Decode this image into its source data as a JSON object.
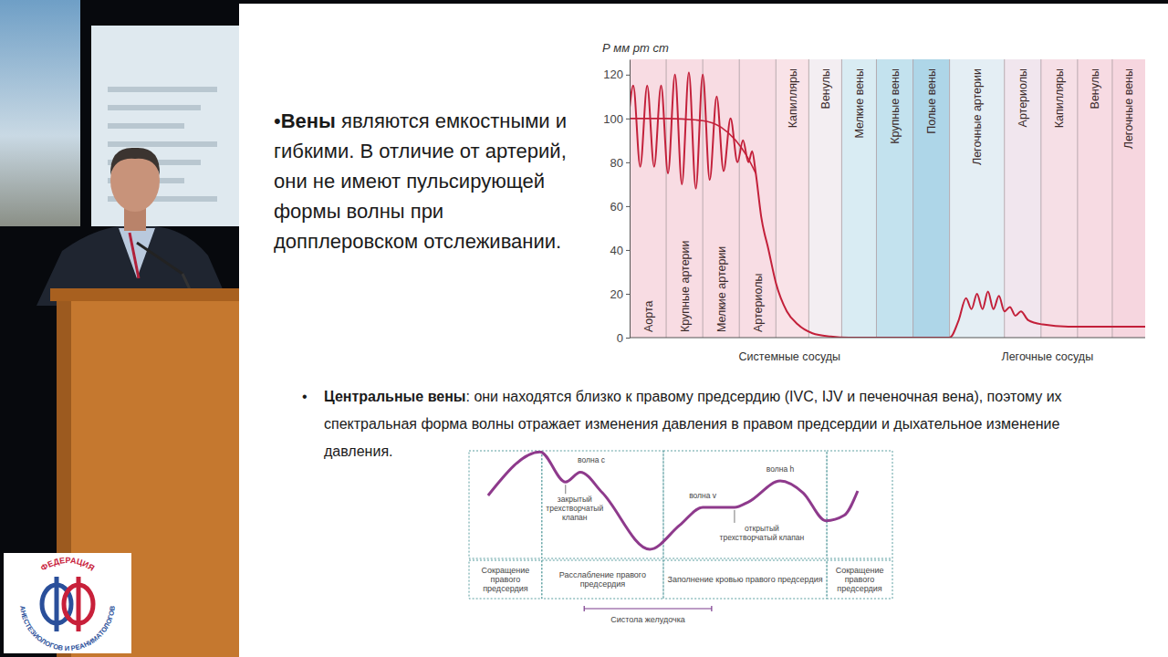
{
  "slide": {
    "bullet_1": {
      "bullet": "•",
      "bold": "Вены",
      "lines": [
        " являются емкостными и",
        "гибкими. В отличие от артерий,",
        "они не имеют пульсирующей",
        "формы волны при",
        "допплеровском отслеживании."
      ]
    },
    "bullet_2": {
      "bullet": "•",
      "bold": "Центральные вены",
      "lines": [
        ": они находятся близко к правому предсердию (IVC, IJV и печеночная вена), поэтому их",
        "спектральная форма волны отражает изменения давления в правом предсердии и дыхательное изменение",
        "давления."
      ]
    }
  },
  "logo": {
    "top_text": "ФЕДЕРАЦИЯ",
    "bottom_text": "АНЕСТЕЗИОЛОГОВ И РЕАНИМАТОЛОГОВ"
  },
  "chart_data": [
    {
      "type": "line",
      "y_label": "Р мм рт ст",
      "xlim": [
        0,
        14.1
      ],
      "ylim": [
        0,
        127
      ],
      "yticks": [
        0,
        20,
        40,
        60,
        80,
        100,
        120
      ],
      "tick_labels": "y",
      "bands": [
        {
          "label": "Аорта",
          "start": 0,
          "end": 1,
          "color": "#f8dce3"
        },
        {
          "label": "Крупные артерии",
          "start": 1,
          "end": 2,
          "color": "#f8dce3"
        },
        {
          "label": "Мелкие артерии",
          "start": 2,
          "end": 3,
          "color": "#f8dce3"
        },
        {
          "label": "Артериолы",
          "start": 3,
          "end": 4,
          "color": "#f8dde4"
        },
        {
          "label": "Капилляры",
          "start": 4,
          "end": 4.9,
          "color": "#f9e3e8"
        },
        {
          "label": "Венулы",
          "start": 4.9,
          "end": 5.8,
          "color": "#f3eef2"
        },
        {
          "label": "Мелкие вены",
          "start": 5.8,
          "end": 6.75,
          "color": "#d9ecf3"
        },
        {
          "label": "Крупные вены",
          "start": 6.75,
          "end": 7.75,
          "color": "#c3e2ee"
        },
        {
          "label": "Полые вены",
          "start": 7.75,
          "end": 8.75,
          "color": "#aed6e8"
        },
        {
          "label": "Легочные артерии",
          "start": 8.75,
          "end": 10.25,
          "color": "#e4eef4"
        },
        {
          "label": "Артериолы",
          "start": 10.25,
          "end": 11.25,
          "color": "#f1e6ee"
        },
        {
          "label": "Капилляры",
          "start": 11.25,
          "end": 12.25,
          "color": "#f6dfe6"
        },
        {
          "label": "Венулы",
          "start": 12.25,
          "end": 13.2,
          "color": "#f7dbe3"
        },
        {
          "label": "Легочные вены",
          "start": 13.2,
          "end": 14.1,
          "color": "#f6d6df"
        }
      ],
      "groups": [
        {
          "label": "Системные сосуды",
          "start": 0,
          "end": 8.75
        },
        {
          "label": "Легочные сосуды",
          "start": 8.75,
          "end": 14.1
        }
      ],
      "series": [
        {
          "color": "#c3203a",
          "line_style": "solid",
          "x": [
            0,
            0.1,
            0.29,
            0.48,
            0.67,
            0.86,
            1.05,
            1.24,
            1.43,
            1.62,
            1.81,
            2.0,
            2.19,
            2.38,
            2.57,
            2.76,
            2.95,
            3.1,
            3.25,
            3.35,
            3.45,
            3.6,
            3.8,
            4.0,
            4.3,
            4.6,
            5.0,
            5.5,
            6.0,
            8.75,
            9.0,
            9.2,
            9.35,
            9.5,
            9.65,
            9.8,
            9.95,
            10.1,
            10.25,
            10.4,
            10.55,
            10.7,
            10.9,
            11.3,
            12.0,
            14.1
          ],
          "values": [
            105,
            115,
            78,
            115,
            78,
            115,
            75,
            120,
            70,
            121,
            68,
            120,
            72,
            110,
            76,
            100,
            80,
            90,
            80,
            85,
            75,
            55,
            40,
            25,
            12,
            6,
            2,
            0.5,
            0,
            0,
            8,
            18,
            13,
            20,
            13,
            21,
            13,
            19,
            12,
            14,
            10,
            12,
            8,
            6,
            5,
            5
          ]
        },
        {
          "color": "#c3203a",
          "line_style": "solid",
          "x": [
            0,
            1,
            2,
            2.5,
            2.9,
            3.2,
            3.45
          ],
          "values": [
            100,
            100,
            99,
            96,
            90,
            83,
            75
          ]
        }
      ]
    },
    {
      "type": "line",
      "xlim": [
        0,
        100
      ],
      "ylim": [
        0,
        100
      ],
      "tick_labels": false,
      "series": [
        {
          "color": "#8e3a8c",
          "line_style": "solid",
          "x": [
            4.5,
            16.8,
            22.8,
            26.3,
            31.5,
            42.7,
            49.8,
            55.2,
            62.7,
            66,
            73.5,
            78.9,
            84.3,
            88.6,
            91.8
          ],
          "values": [
            58.5,
            99,
            71,
            80,
            61,
            8.5,
            31,
            47.5,
            47.5,
            52.5,
            72,
            61,
            35,
            40,
            62.7
          ]
        }
      ],
      "phases": [
        {
          "label": "Сокращение правого предсердия",
          "start": 0,
          "end": 17.2
        },
        {
          "label": "Расслабление правого предсердия",
          "start": 17.2,
          "end": 45.9
        },
        {
          "label": "Заполнение кровью правого предсердия",
          "start": 45.9,
          "end": 84.5
        },
        {
          "label": "Сокращение правого предсердия",
          "start": 84.5,
          "end": 100
        }
      ],
      "span": {
        "label": "Систола желудочка",
        "start": 27.2,
        "end": 57.3
      },
      "annotations": [
        {
          "text": "волна с",
          "x": 26.3,
          "y": 80
        },
        {
          "text": "закрытый трехстворчатый клапан",
          "x": 22.8,
          "y": 71
        },
        {
          "text": "волна v",
          "x": 55.2,
          "y": 47.5
        },
        {
          "text": "волна h",
          "x": 73.5,
          "y": 72
        },
        {
          "text": "открытый трехстворчатый клапан",
          "x": 62.7,
          "y": 47.5
        }
      ]
    }
  ]
}
